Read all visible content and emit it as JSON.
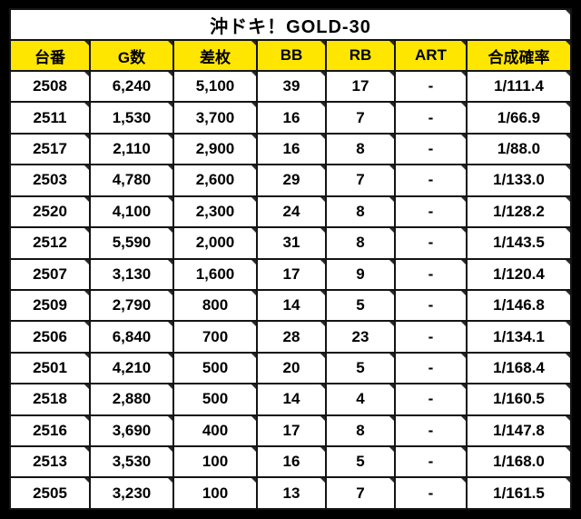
{
  "title": "沖ドキ！GOLD-30",
  "chart_data": {
    "type": "table",
    "title": "沖ドキ！GOLD-30",
    "columns": [
      "台番",
      "G数",
      "差枚",
      "BB",
      "RB",
      "ART",
      "合成確率"
    ],
    "rows": [
      [
        "2508",
        "6,240",
        "5,100",
        "39",
        "17",
        "-",
        "1/111.4"
      ],
      [
        "2511",
        "1,530",
        "3,700",
        "16",
        "7",
        "-",
        "1/66.9"
      ],
      [
        "2517",
        "2,110",
        "2,900",
        "16",
        "8",
        "-",
        "1/88.0"
      ],
      [
        "2503",
        "4,780",
        "2,600",
        "29",
        "7",
        "-",
        "1/133.0"
      ],
      [
        "2520",
        "4,100",
        "2,300",
        "24",
        "8",
        "-",
        "1/128.2"
      ],
      [
        "2512",
        "5,590",
        "2,000",
        "31",
        "8",
        "-",
        "1/143.5"
      ],
      [
        "2507",
        "3,130",
        "1,600",
        "17",
        "9",
        "-",
        "1/120.4"
      ],
      [
        "2509",
        "2,790",
        "800",
        "14",
        "5",
        "-",
        "1/146.8"
      ],
      [
        "2506",
        "6,840",
        "700",
        "28",
        "23",
        "-",
        "1/134.1"
      ],
      [
        "2501",
        "4,210",
        "500",
        "20",
        "5",
        "-",
        "1/168.4"
      ],
      [
        "2518",
        "2,880",
        "500",
        "14",
        "4",
        "-",
        "1/160.5"
      ],
      [
        "2516",
        "3,690",
        "400",
        "17",
        "8",
        "-",
        "1/147.8"
      ],
      [
        "2513",
        "3,530",
        "100",
        "16",
        "5",
        "-",
        "1/168.0"
      ],
      [
        "2505",
        "3,230",
        "100",
        "13",
        "7",
        "-",
        "1/161.5"
      ]
    ]
  },
  "colors": {
    "frame_bg": "#000000",
    "header_bg": "#ffe600",
    "cell_bg": "#ffffff",
    "grid": "#141414",
    "text": "#000000"
  }
}
